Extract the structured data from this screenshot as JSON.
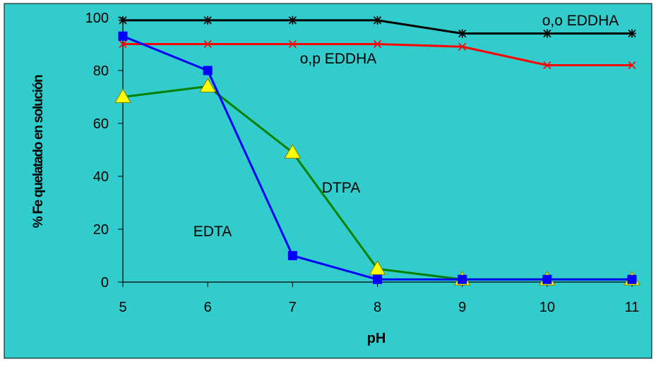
{
  "chart_data": {
    "type": "line",
    "xlabel": "pH",
    "ylabel": "% Fe quelatado en solución",
    "ylim": [
      0,
      100
    ],
    "yticks": [
      0,
      20,
      40,
      60,
      80,
      100
    ],
    "x": [
      5,
      6,
      7,
      8,
      9,
      10,
      11
    ],
    "grid": false,
    "background": "#33CCCC",
    "series": [
      {
        "name": "o,o EDDHA",
        "values": [
          99,
          99,
          99,
          99,
          94,
          94,
          94
        ],
        "color": "#000000",
        "marker": "asterisk"
      },
      {
        "name": "o,p EDDHA",
        "values": [
          90,
          90,
          90,
          90,
          89,
          82,
          82
        ],
        "color": "#FF0000",
        "marker": "x"
      },
      {
        "name": "EDTA",
        "values": [
          93,
          80,
          10,
          1,
          1,
          1,
          1
        ],
        "color": "#0000FF",
        "marker": "square",
        "marker_color": "#0000FF"
      },
      {
        "name": "DTPA",
        "values": [
          70,
          74,
          49,
          5,
          1,
          1,
          1
        ],
        "color": "#008000",
        "marker": "triangle",
        "marker_color": "#FFFF00"
      }
    ]
  }
}
